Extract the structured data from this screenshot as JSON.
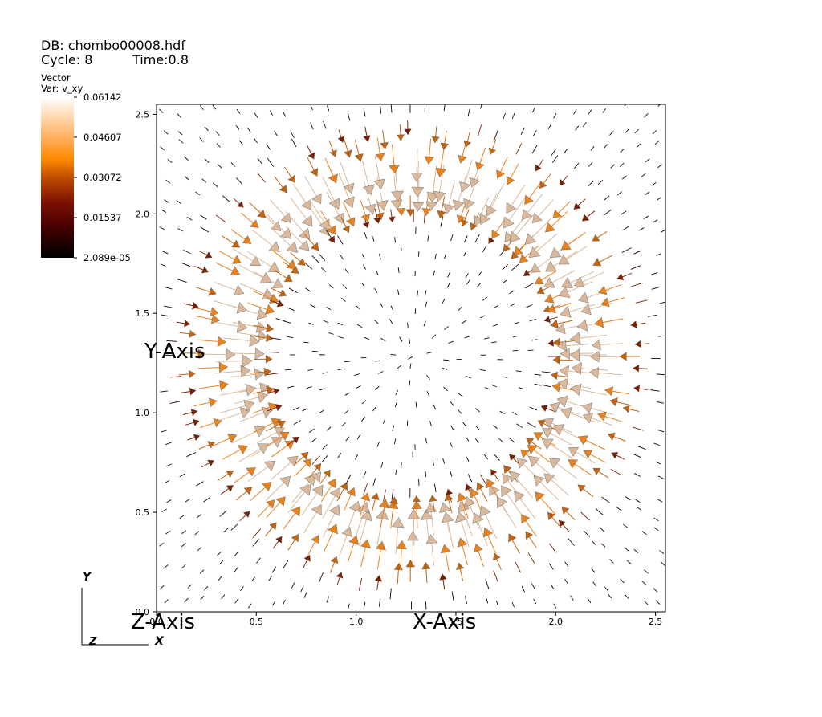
{
  "header": {
    "db_line": "DB: chombo00008.hdf",
    "cycle_line": "Cycle: 8",
    "time_line": "Time:0.8"
  },
  "legend": {
    "plot_type": "Vector",
    "var_line": "Var: v_xy",
    "ticks": [
      "0.06142",
      "0.04607",
      "0.03072",
      "0.01537",
      "2.089e-05"
    ],
    "colors": [
      "#ffffff",
      "#ff8c00",
      "#7a1e00",
      "#6b0000",
      "#000000"
    ]
  },
  "triad": {
    "y": "Y",
    "z": "Z",
    "x": "X"
  },
  "chart_data": {
    "type": "scatter",
    "subtype": "vector-field",
    "xlabel": "X-Axis",
    "ylabel": "Y-Axis",
    "zlabel": "Z-Axis",
    "xlim": [
      0.0,
      2.55
    ],
    "ylim": [
      0.0,
      2.55
    ],
    "xticks": [
      0.0,
      0.5,
      1.0,
      1.5,
      2.0,
      2.5
    ],
    "yticks": [
      0.0,
      0.5,
      1.0,
      1.5,
      2.0,
      2.5
    ],
    "xtick_labels": [
      "0.0",
      "0.5",
      "1.0",
      "1.5",
      "2.0",
      "2.5"
    ],
    "ytick_labels": [
      "0.0",
      "0.5",
      "1.0",
      "1.5",
      "2.0",
      "2.5"
    ],
    "pattern": "radially inward vectors on a ring; magnitude near zero inside and outside the ring",
    "center": [
      1.28,
      1.28
    ],
    "ring_radius": [
      0.85,
      1.1
    ],
    "range": [
      2.089e-05,
      0.06142
    ]
  }
}
